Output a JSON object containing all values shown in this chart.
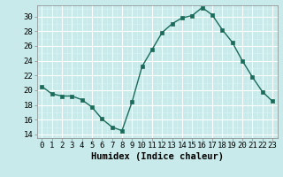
{
  "x": [
    0,
    1,
    2,
    3,
    4,
    5,
    6,
    7,
    8,
    9,
    10,
    11,
    12,
    13,
    14,
    15,
    16,
    17,
    18,
    19,
    20,
    21,
    22,
    23
  ],
  "y": [
    20.5,
    19.5,
    19.2,
    19.2,
    18.7,
    17.7,
    16.1,
    15.0,
    14.5,
    18.4,
    23.2,
    25.5,
    27.8,
    29.0,
    29.8,
    30.1,
    31.2,
    30.2,
    28.2,
    26.5,
    24.0,
    21.8,
    19.8,
    18.5
  ],
  "line_color": "#1a6b5a",
  "marker": "s",
  "marker_size": 2.5,
  "bg_color": "#c8eaea",
  "grid_major_color": "#ffffff",
  "grid_minor_color": "#daf0f0",
  "xlabel": "Humidex (Indice chaleur)",
  "ylim": [
    13.5,
    31.5
  ],
  "xlim": [
    -0.5,
    23.5
  ],
  "yticks": [
    14,
    16,
    18,
    20,
    22,
    24,
    26,
    28,
    30
  ],
  "xticks": [
    0,
    1,
    2,
    3,
    4,
    5,
    6,
    7,
    8,
    9,
    10,
    11,
    12,
    13,
    14,
    15,
    16,
    17,
    18,
    19,
    20,
    21,
    22,
    23
  ],
  "xtick_labels": [
    "0",
    "1",
    "2",
    "3",
    "4",
    "5",
    "6",
    "7",
    "8",
    "9",
    "10",
    "11",
    "12",
    "13",
    "14",
    "15",
    "16",
    "17",
    "18",
    "19",
    "20",
    "21",
    "22",
    "23"
  ],
  "xlabel_fontsize": 7.5,
  "tick_fontsize": 6.5
}
